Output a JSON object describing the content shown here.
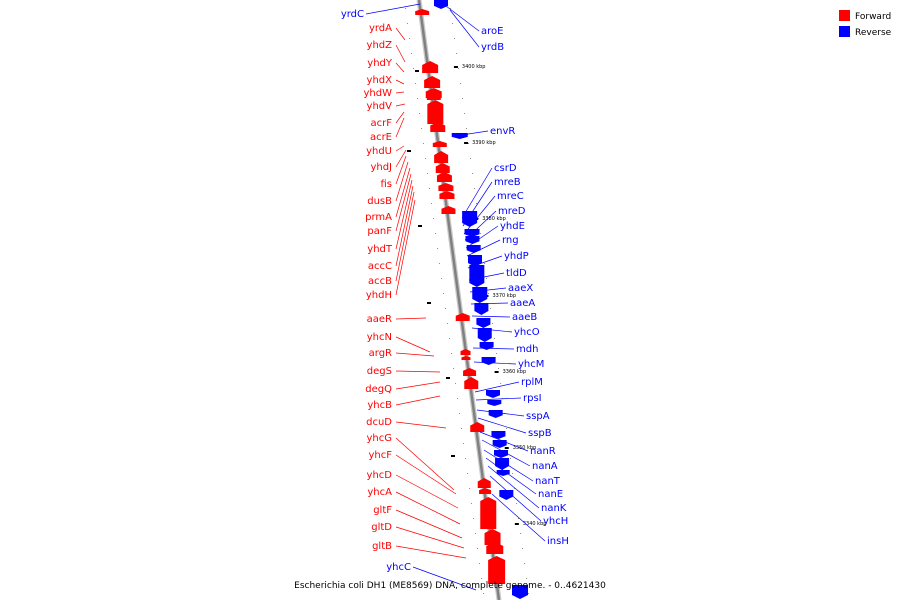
{
  "footer": "Escherichia coli DH1 (ME8569) DNA, complete genome. - 0..4621430",
  "legend": [
    {
      "label": "Forward",
      "color": "#ff0000"
    },
    {
      "label": "Reverse",
      "color": "#0000ff"
    }
  ],
  "colors": {
    "forward": "#ff0000",
    "reverse": "#0000ff",
    "backbone": "#808080"
  },
  "ticks": [
    "3400 kbp",
    "3390 kbp",
    "3380 kbp",
    "3370 kbp",
    "3360 kbp",
    "3350 kbp",
    "3340 kbp"
  ],
  "forward_genes": [
    "yrdA",
    "yhdZ",
    "yhdY",
    "yhdX",
    "yhdW",
    "yhdV",
    "acrF",
    "acrE",
    "yhdU",
    "yhdJ",
    "fis",
    "dusB",
    "prmA",
    "panF",
    "yhdT",
    "accC",
    "accB",
    "yhdH",
    "aaeR",
    "yhcN",
    "argR",
    "degS",
    "degQ",
    "yhcB",
    "dcuD",
    "yhcG",
    "yhcF",
    "yhcD",
    "yhcA",
    "gltF",
    "gltD",
    "gltB"
  ],
  "reverse_genes": [
    "yrdC",
    "aroE",
    "yrdB",
    "envR",
    "csrD",
    "mreB",
    "mreC",
    "mreD",
    "yhdE",
    "rng",
    "yhdP",
    "tldD",
    "aaeX",
    "aaeA",
    "aaeB",
    "yhcO",
    "mdh",
    "yhcM",
    "rplM",
    "rpsI",
    "sspA",
    "sspB",
    "nanR",
    "nanA",
    "nanT",
    "nanE",
    "nanK",
    "yhcH",
    "insH",
    "yhcC"
  ]
}
